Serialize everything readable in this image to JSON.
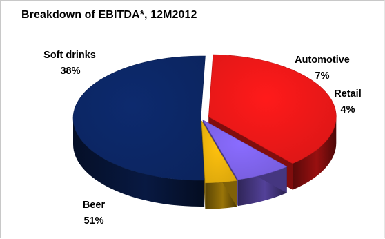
{
  "chart_data": {
    "type": "pie",
    "title": "Breakdown of EBITDA*, 12M2012",
    "slices": [
      {
        "label": "Soft drinks",
        "value": 38,
        "value_label": "38%",
        "color": "#ff1a1a"
      },
      {
        "label": "Automotive",
        "value": 7,
        "value_label": "7%",
        "color": "#8a6cff"
      },
      {
        "label": "Retail",
        "value": 4,
        "value_label": "4%",
        "color": "#ffc20e"
      },
      {
        "label": "Beer",
        "value": 51,
        "value_label": "51%",
        "color": "#0d2a6e"
      }
    ],
    "style": "3d-exploded",
    "legend": "none"
  }
}
